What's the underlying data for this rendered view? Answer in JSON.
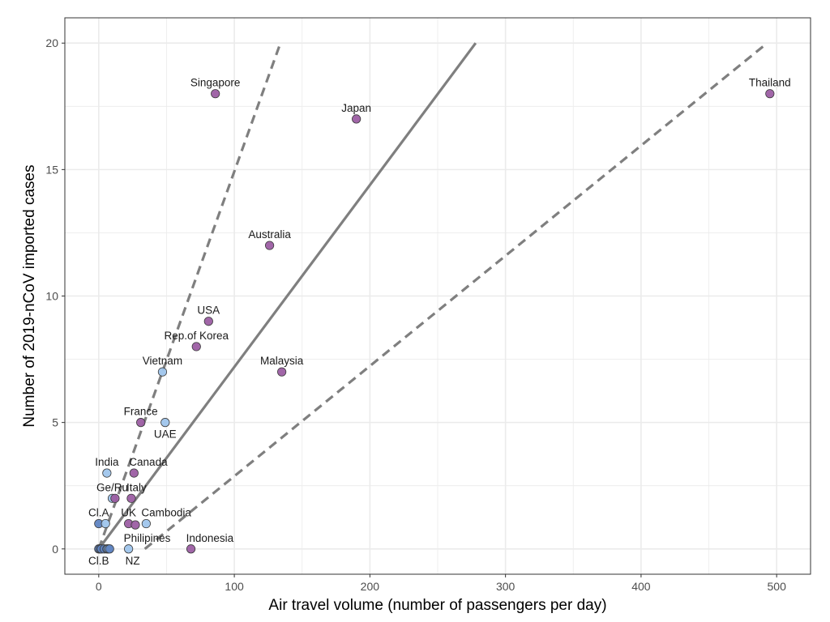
{
  "chart_data": {
    "type": "scatter",
    "xlabel": "Air travel volume (number of passengers per day)",
    "ylabel": "Number of 2019-nCoV imported cases",
    "xlim": [
      -25,
      525
    ],
    "ylim": [
      -1,
      21
    ],
    "x_ticks": [
      0,
      100,
      200,
      300,
      400,
      500
    ],
    "y_ticks": [
      0,
      5,
      10,
      15,
      20
    ],
    "x_tick_labels": [
      "0",
      "100",
      "200",
      "300",
      "400",
      "500"
    ],
    "y_tick_labels": [
      "0",
      "5",
      "10",
      "15",
      "20"
    ],
    "grid": true,
    "legend": "none",
    "colors": {
      "purple": "#9c5ea3",
      "blue": "#9fc5ec",
      "dark_blue": "#5f84c2",
      "line": "#7f7f7f",
      "grid": "#ebebeb",
      "panel_border": "#333333"
    },
    "lines": [
      {
        "style": "solid",
        "x": [
          0,
          278
        ],
        "y": [
          0,
          20
        ]
      },
      {
        "style": "dashed",
        "x": [
          0,
          134
        ],
        "y": [
          0,
          20
        ]
      },
      {
        "style": "dashed",
        "x": [
          34,
          493
        ],
        "y": [
          0,
          20
        ]
      }
    ],
    "points": [
      {
        "label": "Thailand",
        "x": 495,
        "y": 18,
        "color": "purple",
        "label_pos": "above"
      },
      {
        "label": "Singapore",
        "x": 86,
        "y": 18,
        "color": "purple",
        "label_pos": "above"
      },
      {
        "label": "Japan",
        "x": 190,
        "y": 17,
        "color": "purple",
        "label_pos": "above"
      },
      {
        "label": "Australia",
        "x": 126,
        "y": 12,
        "color": "purple",
        "label_pos": "above"
      },
      {
        "label": "USA",
        "x": 81,
        "y": 9,
        "color": "purple",
        "label_pos": "above"
      },
      {
        "label": "Rep.of Korea",
        "x": 72,
        "y": 8,
        "color": "purple",
        "label_pos": "above"
      },
      {
        "label": "Malaysia",
        "x": 135,
        "y": 7,
        "color": "purple",
        "label_pos": "above"
      },
      {
        "label": "Vietnam",
        "x": 47,
        "y": 7,
        "color": "blue",
        "label_pos": "above"
      },
      {
        "label": "France",
        "x": 31,
        "y": 5,
        "color": "purple",
        "label_pos": "above"
      },
      {
        "label": "UAE",
        "x": 49,
        "y": 5,
        "color": "blue",
        "label_pos": "below"
      },
      {
        "label": "India",
        "x": 6,
        "y": 3,
        "color": "blue",
        "label_pos": "above"
      },
      {
        "label": "Canada",
        "x": 26,
        "y": 3,
        "color": "purple",
        "label_pos": "above-right"
      },
      {
        "label": "Ge/Ru",
        "x": 10,
        "y": 2,
        "color": "blue",
        "label_pos": "above"
      },
      {
        "label": "",
        "x": 12,
        "y": 2,
        "color": "purple",
        "label_pos": "none"
      },
      {
        "label": "Italy",
        "x": 24,
        "y": 2,
        "color": "purple",
        "label_pos": "above-right"
      },
      {
        "label": "Cl.A",
        "x": 0,
        "y": 1,
        "color": "dark_blue",
        "label_pos": "above"
      },
      {
        "label": "",
        "x": 5,
        "y": 1,
        "color": "blue",
        "label_pos": "none"
      },
      {
        "label": "UK",
        "x": 22,
        "y": 1,
        "color": "purple",
        "label_pos": "above"
      },
      {
        "label": "",
        "x": 27,
        "y": 0.95,
        "color": "purple",
        "label_pos": "none"
      },
      {
        "label": "Cambodia",
        "x": 35,
        "y": 1,
        "color": "blue",
        "label_pos": "above-right"
      },
      {
        "label": "Indonesia",
        "x": 68,
        "y": 0,
        "color": "purple",
        "label_pos": "above-right"
      },
      {
        "label": "Philipines",
        "x": 22,
        "y": 0,
        "color": "blue",
        "label_pos": "above-right"
      },
      {
        "label": "NZ",
        "x": 22,
        "y": 0,
        "color": "none",
        "label_pos": "below-right"
      },
      {
        "label": "Cl.B",
        "x": 0,
        "y": 0,
        "color": "dark_blue",
        "label_pos": "below"
      },
      {
        "label": "",
        "x": 1,
        "y": 0,
        "color": "dark_blue",
        "label_pos": "none"
      },
      {
        "label": "",
        "x": 2,
        "y": 0,
        "color": "dark_blue",
        "label_pos": "none"
      },
      {
        "label": "",
        "x": 4,
        "y": 0,
        "color": "dark_blue",
        "label_pos": "none"
      },
      {
        "label": "",
        "x": 6,
        "y": 0,
        "color": "dark_blue",
        "label_pos": "none"
      },
      {
        "label": "",
        "x": 7,
        "y": 0,
        "color": "blue",
        "label_pos": "none"
      },
      {
        "label": "",
        "x": 8,
        "y": 0,
        "color": "dark_blue",
        "label_pos": "none"
      }
    ]
  }
}
